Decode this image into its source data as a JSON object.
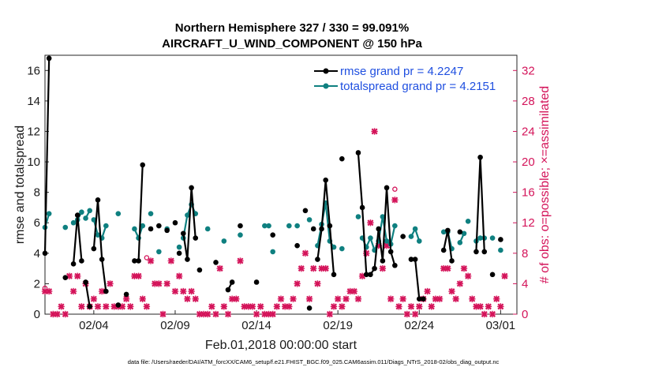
{
  "chart_data": {
    "type": "line",
    "title_line1": "Northern Hemisphere 327 / 330 = 99.091%",
    "title_line2": "AIRCRAFT_U_WIND_COMPONENT @ 150 hPa",
    "xlabel": "Feb.01,2018 00:00:00 start",
    "ylabel": "rmse and totalspread",
    "ylabel_right": "# of obs: o=possible; ×=assimilated",
    "xlim": [
      1,
      30
    ],
    "ylim": [
      0,
      17
    ],
    "ylim_right": [
      0,
      34
    ],
    "x_ticks": [
      {
        "x": 4,
        "label": "02/04"
      },
      {
        "x": 9,
        "label": "02/09"
      },
      {
        "x": 14,
        "label": "02/14"
      },
      {
        "x": 19,
        "label": "02/19"
      },
      {
        "x": 24,
        "label": "02/24"
      },
      {
        "x": 29,
        "label": "03/01"
      }
    ],
    "y_ticks": [
      0,
      2,
      4,
      6,
      8,
      10,
      12,
      14,
      16
    ],
    "y_ticks_right": [
      0,
      4,
      8,
      12,
      16,
      20,
      24,
      28,
      32
    ],
    "legend": [
      {
        "label": "rmse grand pr = 4.2247",
        "color": "#000000",
        "series": "rmse"
      },
      {
        "label": "totalspread grand pr = 4.2151",
        "color": "#0f8080",
        "series": "spread"
      }
    ],
    "series": [
      {
        "name": "rmse",
        "color": "#000000",
        "segments": [
          [
            [
              1.0,
              4.0
            ],
            [
              1.25,
              16.8
            ]
          ],
          [
            [
              2.25,
              2.4
            ]
          ],
          [
            [
              2.75,
              3.3
            ],
            [
              3.0,
              6.5
            ],
            [
              3.25,
              3.5
            ]
          ],
          [
            [
              3.5,
              2.1
            ],
            [
              3.75,
              0.5
            ]
          ],
          [
            [
              4.0,
              4.3
            ],
            [
              4.25,
              7.5
            ],
            [
              4.5,
              3.6
            ],
            [
              4.75,
              1.5
            ]
          ],
          [
            [
              5.5,
              0.6
            ]
          ],
          [
            [
              6.0,
              1.3
            ]
          ],
          [
            [
              6.5,
              3.5
            ],
            [
              6.75,
              3.5
            ],
            [
              7.0,
              9.8
            ]
          ],
          [
            [
              7.5,
              5.6
            ]
          ],
          [
            [
              8.0,
              5.8
            ]
          ],
          [
            [
              8.5,
              5.5
            ]
          ],
          [
            [
              9.0,
              6.0
            ]
          ],
          [
            [
              9.25,
              4.0
            ]
          ],
          [
            [
              9.5,
              5.3
            ],
            [
              9.75,
              3.6
            ],
            [
              10.0,
              8.3
            ],
            [
              10.25,
              5.0
            ]
          ],
          [
            [
              10.5,
              2.9
            ]
          ],
          [
            [
              11.5,
              3.4
            ]
          ],
          [
            [
              12.25,
              1.6
            ],
            [
              12.5,
              2.1
            ]
          ],
          [
            [
              13.0,
              5.8
            ]
          ],
          [
            [
              14.0,
              2.1
            ]
          ],
          [
            [
              15.0,
              5.2
            ]
          ],
          [
            [
              16.5,
              4.5
            ]
          ],
          [
            [
              17.0,
              6.8
            ]
          ],
          [
            [
              17.25,
              0.4
            ]
          ],
          [
            [
              17.5,
              5.6
            ]
          ],
          [
            [
              17.75,
              3.6
            ],
            [
              18.0,
              5.6
            ],
            [
              18.25,
              8.8
            ],
            [
              18.5,
              5.8
            ],
            [
              18.75,
              2.6
            ]
          ],
          [
            [
              19.25,
              10.2
            ]
          ],
          [
            [
              20.25,
              10.6
            ],
            [
              20.5,
              7.0
            ],
            [
              20.75,
              2.6
            ],
            [
              21.0,
              2.6
            ],
            [
              21.25,
              3.0
            ],
            [
              21.5,
              5.6
            ],
            [
              21.75,
              3.5
            ],
            [
              22.0,
              8.3
            ],
            [
              22.25,
              4.1
            ],
            [
              22.5,
              3.2
            ]
          ],
          [
            [
              23.0,
              5.1
            ]
          ],
          [
            [
              23.5,
              3.6
            ],
            [
              23.75,
              3.6
            ],
            [
              24.0,
              1.0
            ],
            [
              24.25,
              1.0
            ]
          ],
          [
            [
              25.5,
              4.2
            ],
            [
              25.75,
              5.5
            ],
            [
              26.0,
              3.5
            ]
          ],
          [
            [
              26.5,
              5.4
            ]
          ],
          [
            [
              27.5,
              4.1
            ],
            [
              27.75,
              10.3
            ],
            [
              28.0,
              4.1
            ]
          ],
          [
            [
              28.5,
              2.6
            ]
          ],
          [
            [
              29.0,
              4.9
            ]
          ]
        ]
      },
      {
        "name": "spread",
        "color": "#0f8080",
        "segments": [
          [
            [
              1.0,
              5.7
            ],
            [
              1.25,
              6.6
            ]
          ],
          [
            [
              2.25,
              5.7
            ]
          ],
          [
            [
              2.75,
              6.0
            ],
            [
              3.0,
              6.2
            ],
            [
              3.25,
              6.7
            ]
          ],
          [
            [
              3.5,
              6.3
            ],
            [
              3.75,
              6.8
            ]
          ],
          [
            [
              4.0,
              6.2
            ],
            [
              4.25,
              5.2
            ],
            [
              4.5,
              5.0
            ],
            [
              4.75,
              5.8
            ]
          ],
          [
            [
              5.5,
              6.6
            ]
          ],
          [
            [
              6.5,
              5.6
            ],
            [
              6.75,
              5.0
            ],
            [
              7.0,
              5.8
            ]
          ],
          [
            [
              7.5,
              6.6
            ]
          ],
          [
            [
              8.0,
              4.1
            ]
          ],
          [
            [
              8.5,
              5.6
            ]
          ],
          [
            [
              9.25,
              4.4
            ]
          ],
          [
            [
              9.5,
              5.0
            ],
            [
              9.75,
              6.5
            ],
            [
              10.0,
              7.2
            ],
            [
              10.25,
              6.6
            ]
          ],
          [
            [
              11.0,
              5.6
            ]
          ],
          [
            [
              12.0,
              4.8
            ]
          ],
          [
            [
              13.0,
              5.2
            ]
          ],
          [
            [
              14.5,
              5.8
            ],
            [
              14.75,
              5.8
            ]
          ],
          [
            [
              15.0,
              4.1
            ]
          ],
          [
            [
              16.0,
              5.8
            ]
          ],
          [
            [
              16.5,
              5.8
            ]
          ],
          [
            [
              17.25,
              6.2
            ]
          ],
          [
            [
              17.75,
              4.5
            ],
            [
              18.0,
              5.9
            ],
            [
              18.25,
              7.3
            ],
            [
              18.5,
              4.8
            ],
            [
              18.75,
              4.4
            ]
          ],
          [
            [
              19.25,
              4.3
            ]
          ],
          [
            [
              20.25,
              6.4
            ]
          ],
          [
            [
              20.5,
              5.0
            ],
            [
              20.75,
              4.4
            ],
            [
              21.0,
              5.0
            ],
            [
              21.25,
              4.2
            ],
            [
              21.5,
              4.8
            ],
            [
              21.75,
              6.4
            ],
            [
              22.0,
              4.8
            ],
            [
              22.25,
              4.6
            ],
            [
              22.5,
              5.8
            ]
          ],
          [
            [
              23.5,
              5.1
            ],
            [
              23.75,
              5.6
            ],
            [
              24.0,
              4.8
            ]
          ],
          [
            [
              25.5,
              5.4
            ],
            [
              25.75,
              5.4
            ],
            [
              26.0,
              4.3
            ]
          ],
          [
            [
              26.5,
              4.7
            ],
            [
              26.75,
              5.3
            ]
          ],
          [
            [
              27.0,
              6.1
            ]
          ],
          [
            [
              27.5,
              4.8
            ],
            [
              27.75,
              5.0
            ],
            [
              28.0,
              5.0
            ]
          ],
          [
            [
              28.5,
              5.0
            ]
          ],
          [
            [
              29.0,
              4.2
            ]
          ]
        ]
      }
    ],
    "obs_possible_x": [
      [
        1.0,
        3
      ],
      [
        1.25,
        3
      ],
      [
        1.5,
        0
      ],
      [
        1.75,
        0
      ],
      [
        2.0,
        1
      ],
      [
        2.25,
        0
      ],
      [
        2.5,
        5
      ],
      [
        2.75,
        3
      ],
      [
        3.0,
        5
      ],
      [
        3.25,
        1
      ],
      [
        3.5,
        4
      ],
      [
        3.75,
        1
      ],
      [
        4.0,
        2
      ],
      [
        4.25,
        1
      ],
      [
        4.5,
        3
      ],
      [
        4.75,
        1
      ],
      [
        5.0,
        4
      ],
      [
        5.25,
        1
      ],
      [
        5.5,
        1
      ],
      [
        5.75,
        1
      ],
      [
        6.0,
        2
      ],
      [
        6.25,
        1
      ],
      [
        6.5,
        5
      ],
      [
        6.75,
        5
      ],
      [
        7.0,
        2
      ],
      [
        7.25,
        1
      ],
      [
        7.5,
        7
      ],
      [
        7.75,
        4
      ],
      [
        8.0,
        4
      ],
      [
        8.25,
        0
      ],
      [
        8.5,
        4
      ],
      [
        8.75,
        7
      ],
      [
        9.0,
        3
      ],
      [
        9.25,
        5
      ],
      [
        9.5,
        3
      ],
      [
        9.75,
        2
      ],
      [
        10.0,
        3
      ],
      [
        10.25,
        2
      ],
      [
        10.5,
        0
      ],
      [
        10.75,
        0
      ],
      [
        11.0,
        0
      ],
      [
        11.25,
        1
      ],
      [
        11.5,
        0
      ],
      [
        11.75,
        6
      ],
      [
        12.0,
        1
      ],
      [
        12.25,
        0
      ],
      [
        12.5,
        2
      ],
      [
        12.75,
        2
      ],
      [
        13.0,
        7
      ],
      [
        13.25,
        1
      ],
      [
        13.5,
        1
      ],
      [
        13.75,
        1
      ],
      [
        14.0,
        0
      ],
      [
        14.25,
        1
      ],
      [
        14.5,
        0
      ],
      [
        14.75,
        0
      ],
      [
        15.0,
        0
      ],
      [
        15.25,
        1
      ],
      [
        15.5,
        2
      ],
      [
        15.75,
        1
      ],
      [
        16.0,
        1
      ],
      [
        16.25,
        2
      ],
      [
        16.5,
        4
      ],
      [
        16.75,
        6
      ],
      [
        17.0,
        8
      ],
      [
        17.25,
        2
      ],
      [
        17.5,
        6
      ],
      [
        17.75,
        4
      ],
      [
        18.0,
        6
      ],
      [
        18.25,
        6
      ],
      [
        18.5,
        0
      ],
      [
        18.75,
        1
      ],
      [
        19.0,
        2
      ],
      [
        19.25,
        1
      ],
      [
        19.5,
        2
      ],
      [
        19.75,
        3
      ],
      [
        20.0,
        3
      ],
      [
        20.25,
        2
      ],
      [
        20.5,
        5
      ],
      [
        20.75,
        8
      ],
      [
        21.0,
        12
      ],
      [
        21.25,
        24
      ],
      [
        21.5,
        9
      ],
      [
        21.75,
        6
      ],
      [
        22.0,
        9
      ],
      [
        22.25,
        2
      ],
      [
        22.5,
        15
      ],
      [
        22.75,
        1
      ],
      [
        23.0,
        2
      ],
      [
        23.25,
        0
      ],
      [
        23.5,
        1
      ],
      [
        23.75,
        0
      ],
      [
        24.0,
        1
      ],
      [
        24.25,
        2
      ],
      [
        24.5,
        3
      ],
      [
        24.75,
        1
      ],
      [
        25.0,
        2
      ],
      [
        25.25,
        2
      ],
      [
        25.5,
        6
      ],
      [
        25.75,
        6
      ],
      [
        26.0,
        3
      ],
      [
        26.25,
        2
      ],
      [
        26.5,
        4
      ],
      [
        26.75,
        6
      ],
      [
        27.0,
        5
      ],
      [
        27.25,
        2
      ],
      [
        27.5,
        1
      ],
      [
        27.75,
        1
      ],
      [
        28.0,
        0
      ],
      [
        28.25,
        1
      ],
      [
        28.5,
        0
      ],
      [
        28.75,
        2
      ],
      [
        29.0,
        1
      ],
      [
        29.25,
        5
      ]
    ],
    "obs_possible_circle": [
      [
        1.0,
        3
      ],
      [
        7.25,
        7
      ],
      [
        22.5,
        16
      ]
    ]
  },
  "footer_note": "data file: /Users/raeder/DAI/ATM_forcXX/CAM6_setup/f.e21.FHIST_BGC.f09_025.CAM6assim.011/Diags_NTrS_2018-02/obs_diag_output.nc"
}
